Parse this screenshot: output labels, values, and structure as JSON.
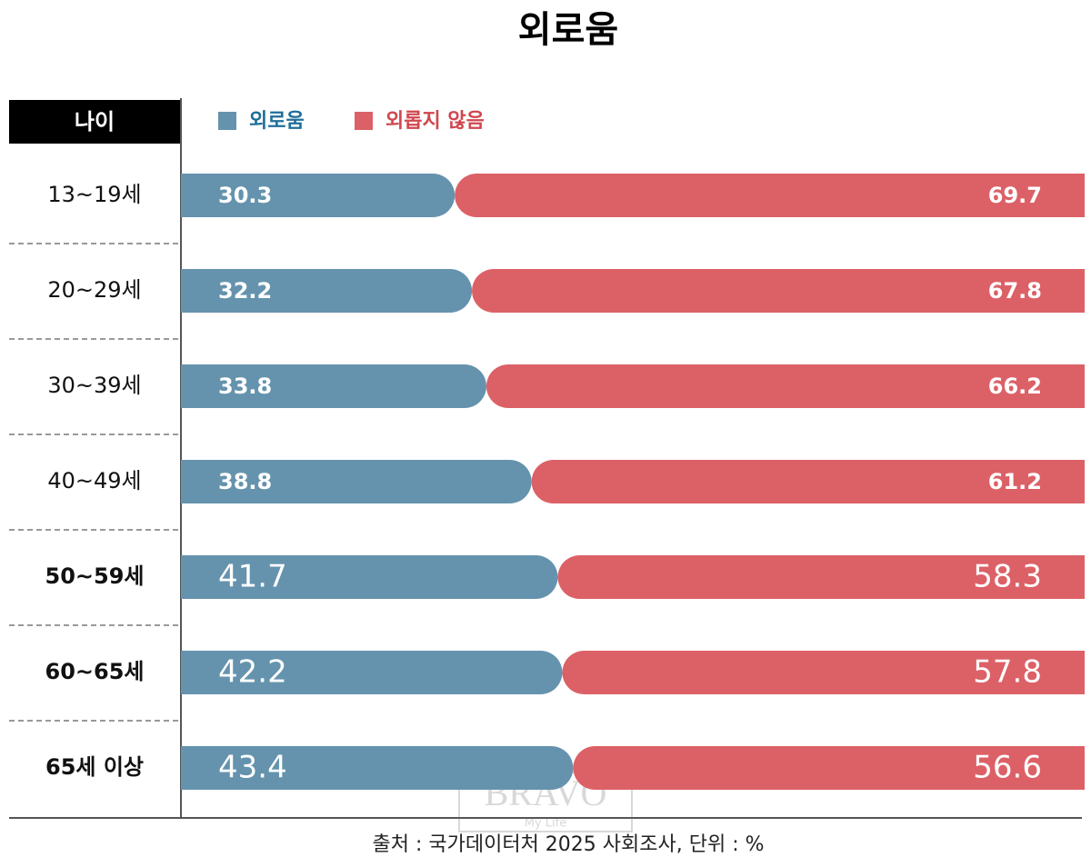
{
  "chart_data": {
    "type": "stacked-bar-100",
    "title": "외로움",
    "y_label": "나이",
    "categories": [
      "13~19세",
      "20~29세",
      "30~39세",
      "40~49세",
      "50~59세",
      "60~65세",
      "65세 이상"
    ],
    "series": [
      {
        "name": "외로움",
        "color": "#6593ad",
        "values": [
          30.3,
          32.2,
          33.8,
          38.8,
          41.7,
          42.2,
          43.4
        ]
      },
      {
        "name": "외롭지 않음",
        "color": "#dc6167",
        "values": [
          69.7,
          67.8,
          66.2,
          61.2,
          58.3,
          57.8,
          56.6
        ]
      }
    ],
    "xlim": [
      0,
      100
    ],
    "source": "출처 : 국가데이터처 2025 사회조사, 단위 : %",
    "watermark": {
      "main": "BRAVO",
      "sub": "My Life"
    }
  }
}
